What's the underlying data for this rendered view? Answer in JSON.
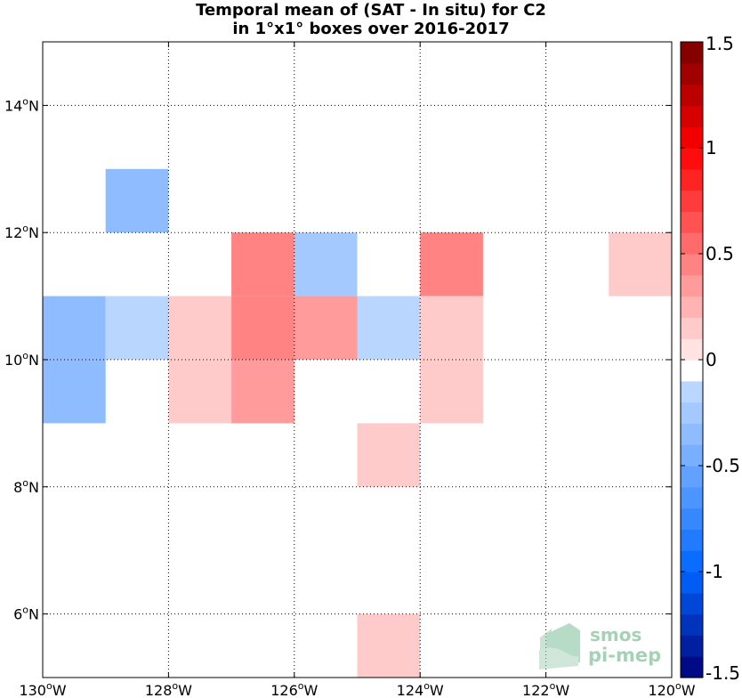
{
  "chart_data": {
    "type": "heatmap",
    "title_lines": [
      "Temporal mean of (SAT - In situ) for C2",
      "in 1°x1° boxes over 2016-2017"
    ],
    "x_ticks": [
      {
        "value": -130,
        "label": "130",
        "suffix": "W"
      },
      {
        "value": -128,
        "label": "128",
        "suffix": "W"
      },
      {
        "value": -126,
        "label": "126",
        "suffix": "W"
      },
      {
        "value": -124,
        "label": "124",
        "suffix": "W"
      },
      {
        "value": -122,
        "label": "122",
        "suffix": "W"
      },
      {
        "value": -120,
        "label": "120",
        "suffix": "W"
      }
    ],
    "y_ticks": [
      {
        "value": 6,
        "label": "6",
        "suffix": "N"
      },
      {
        "value": 8,
        "label": "8",
        "suffix": "N"
      },
      {
        "value": 10,
        "label": "10",
        "suffix": "N"
      },
      {
        "value": 12,
        "label": "12",
        "suffix": "N"
      },
      {
        "value": 14,
        "label": "14",
        "suffix": "N"
      }
    ],
    "degree_mark": "o",
    "xlim": [
      -130,
      -120
    ],
    "ylim": [
      5,
      15
    ],
    "grid": true,
    "colorbar": {
      "vmin": -1.5,
      "vmax": 1.5,
      "levels": 30,
      "ticks": [
        {
          "value": 1.5,
          "label": "1.5"
        },
        {
          "value": 1,
          "label": "1"
        },
        {
          "value": 0.5,
          "label": "0.5"
        },
        {
          "value": 0,
          "label": "0"
        },
        {
          "value": -0.5,
          "label": "-0.5"
        },
        {
          "value": -1,
          "label": "-1"
        },
        {
          "value": -1.5,
          "label": "-1.5"
        }
      ]
    },
    "cells": [
      {
        "lon": -129,
        "lat": 12,
        "value": -0.4
      },
      {
        "lon": -127,
        "lat": 11,
        "value": 0.45
      },
      {
        "lon": -126,
        "lat": 11,
        "value": -0.25
      },
      {
        "lon": -124,
        "lat": 11,
        "value": 0.45
      },
      {
        "lon": -121,
        "lat": 11,
        "value": 0.15
      },
      {
        "lon": -130,
        "lat": 10,
        "value": -0.3
      },
      {
        "lon": -129,
        "lat": 10,
        "value": -0.15
      },
      {
        "lon": -128,
        "lat": 10,
        "value": 0.15
      },
      {
        "lon": -127,
        "lat": 10,
        "value": 0.45
      },
      {
        "lon": -126,
        "lat": 10,
        "value": 0.3
      },
      {
        "lon": -125,
        "lat": 10,
        "value": -0.15
      },
      {
        "lon": -124,
        "lat": 10,
        "value": 0.15
      },
      {
        "lon": -130,
        "lat": 9,
        "value": -0.3
      },
      {
        "lon": -128,
        "lat": 9,
        "value": 0.15
      },
      {
        "lon": -127,
        "lat": 9,
        "value": 0.3
      },
      {
        "lon": -124,
        "lat": 9,
        "value": 0.15
      },
      {
        "lon": -125,
        "lat": 8,
        "value": 0.15
      },
      {
        "lon": -125,
        "lat": 5,
        "value": 0.15
      }
    ]
  },
  "watermark": {
    "line1": "smos",
    "line2": "pi-mep"
  }
}
